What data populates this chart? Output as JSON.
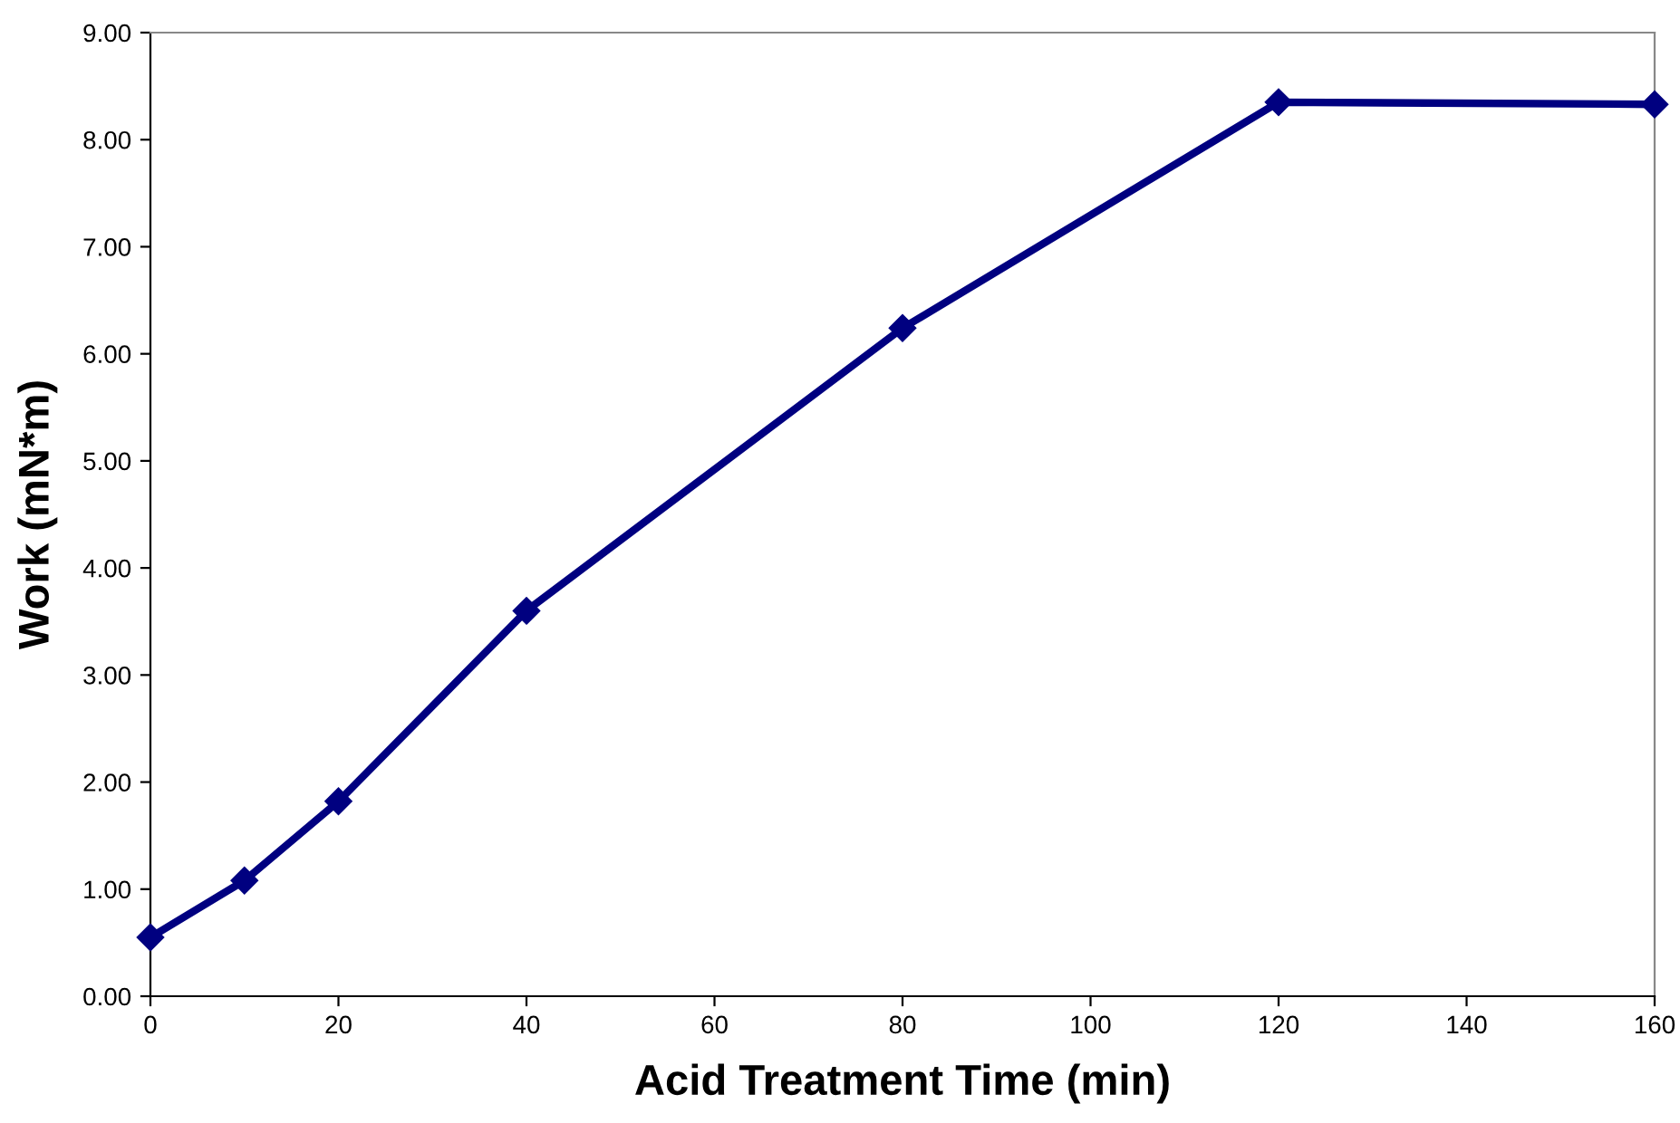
{
  "chart_data": {
    "type": "line",
    "xlabel": "Acid Treatment Time (min)",
    "ylabel": "Work (mN*m)",
    "x": [
      0,
      10,
      20,
      40,
      80,
      120,
      160
    ],
    "series": [
      {
        "color": "#000080",
        "values": [
          0.55,
          1.08,
          1.82,
          3.6,
          6.24,
          8.35,
          8.33
        ]
      }
    ],
    "xlim": [
      0,
      160
    ],
    "xticks": [
      0,
      20,
      40,
      60,
      80,
      100,
      120,
      140,
      160
    ],
    "ylim": [
      0,
      9
    ],
    "yticks": [
      {
        "value": 0,
        "label": "0.00"
      },
      {
        "value": 1,
        "label": "1.00"
      },
      {
        "value": 2,
        "label": "2.00"
      },
      {
        "value": 3,
        "label": "3.00"
      },
      {
        "value": 4,
        "label": "4.00"
      },
      {
        "value": 5,
        "label": "5.00"
      },
      {
        "value": 6,
        "label": "6.00"
      },
      {
        "value": 7,
        "label": "7.00"
      },
      {
        "value": 8,
        "label": "8.00"
      },
      {
        "value": 9,
        "label": "9.00"
      }
    ],
    "marker": "diamond",
    "line_style": "solid",
    "grid": false,
    "legend": false
  }
}
